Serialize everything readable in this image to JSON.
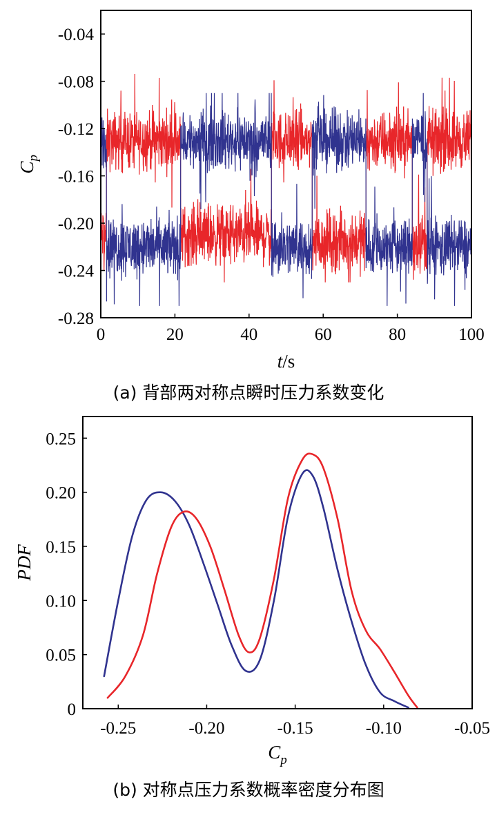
{
  "chart_data": [
    {
      "type": "line",
      "caption": "(a) 背部两对称点瞬时压力系数变化",
      "xlabel_main": "t",
      "xlabel_suffix": "/s",
      "ylabel_main": "C",
      "ylabel_sub": "p",
      "xlim": [
        0,
        100
      ],
      "ylim": [
        -0.28,
        -0.02
      ],
      "xticks": [
        0,
        20,
        40,
        60,
        80,
        100
      ],
      "xtick_labels": [
        "0",
        "20",
        "40",
        "60",
        "80",
        "100"
      ],
      "yticks": [
        -0.04,
        -0.08,
        -0.12,
        -0.16,
        -0.2,
        -0.24,
        -0.28
      ],
      "ytick_labels": [
        "-0.04",
        "-0.08",
        "-0.12",
        "-0.16",
        "-0.20",
        "-0.24",
        "-0.28"
      ],
      "grid": false,
      "series": [
        {
          "color": "#e8262a",
          "regimes": [
            {
              "start": 0,
              "end": 1.5,
              "mean": -0.21
            },
            {
              "start": 1.5,
              "end": 21.5,
              "mean": -0.13
            },
            {
              "start": 21.5,
              "end": 46,
              "mean": -0.21
            },
            {
              "start": 46,
              "end": 57,
              "mean": -0.13
            },
            {
              "start": 57,
              "end": 71.5,
              "mean": -0.215
            },
            {
              "start": 71.5,
              "end": 84,
              "mean": -0.13
            },
            {
              "start": 84,
              "end": 88,
              "mean": -0.215
            },
            {
              "start": 88,
              "end": 100,
              "mean": -0.13
            }
          ],
          "spread": 0.036,
          "min": -0.25,
          "max": -0.06
        },
        {
          "color": "#30338f",
          "regimes": [
            {
              "start": 0,
              "end": 1.5,
              "mean": -0.13
            },
            {
              "start": 1.5,
              "end": 21.5,
              "mean": -0.22
            },
            {
              "start": 21.5,
              "end": 46,
              "mean": -0.13
            },
            {
              "start": 46,
              "end": 57,
              "mean": -0.22
            },
            {
              "start": 57,
              "end": 71.5,
              "mean": -0.13
            },
            {
              "start": 71.5,
              "end": 84,
              "mean": -0.22
            },
            {
              "start": 84,
              "end": 88,
              "mean": -0.13
            },
            {
              "start": 88,
              "end": 100,
              "mean": -0.22
            }
          ],
          "spread": 0.036,
          "min": -0.27,
          "max": -0.09
        }
      ]
    },
    {
      "type": "line",
      "caption": "(b) 对称点压力系数概率密度分布图",
      "xlabel_main": "C",
      "xlabel_sub": "p",
      "ylabel": "PDF",
      "xlim": [
        -0.27,
        -0.05
      ],
      "ylim": [
        0,
        0.27
      ],
      "xticks": [
        -0.25,
        -0.2,
        -0.15,
        -0.1,
        -0.05
      ],
      "xtick_labels": [
        "-0.25",
        "-0.20",
        "-0.15",
        "-0.10",
        "-0.05"
      ],
      "yticks": [
        0,
        0.05,
        0.1,
        0.15,
        0.2,
        0.25
      ],
      "ytick_labels": [
        "0",
        "0.05",
        "0.10",
        "0.15",
        "0.20",
        "0.25"
      ],
      "grid": false,
      "series": [
        {
          "color": "#30338f",
          "x": [
            -0.258,
            -0.25,
            -0.242,
            -0.234,
            -0.226,
            -0.218,
            -0.21,
            -0.202,
            -0.194,
            -0.186,
            -0.178,
            -0.17,
            -0.162,
            -0.154,
            -0.146,
            -0.14,
            -0.134,
            -0.126,
            -0.118,
            -0.11,
            -0.102,
            -0.094,
            -0.086
          ],
          "y": [
            0.03,
            0.1,
            0.16,
            0.193,
            0.2,
            0.192,
            0.17,
            0.135,
            0.097,
            0.059,
            0.035,
            0.045,
            0.1,
            0.178,
            0.217,
            0.215,
            0.185,
            0.128,
            0.08,
            0.04,
            0.015,
            0.007,
            0.001
          ]
        },
        {
          "color": "#e8262a",
          "x": [
            -0.256,
            -0.246,
            -0.236,
            -0.228,
            -0.22,
            -0.213,
            -0.206,
            -0.198,
            -0.19,
            -0.182,
            -0.176,
            -0.17,
            -0.162,
            -0.154,
            -0.146,
            -0.14,
            -0.134,
            -0.126,
            -0.118,
            -0.11,
            -0.102,
            -0.094,
            -0.086,
            -0.081
          ],
          "y": [
            0.01,
            0.03,
            0.068,
            0.125,
            0.168,
            0.182,
            0.176,
            0.15,
            0.11,
            0.068,
            0.052,
            0.065,
            0.12,
            0.195,
            0.23,
            0.235,
            0.222,
            0.175,
            0.108,
            0.072,
            0.055,
            0.034,
            0.012,
            0.001
          ]
        }
      ]
    }
  ]
}
